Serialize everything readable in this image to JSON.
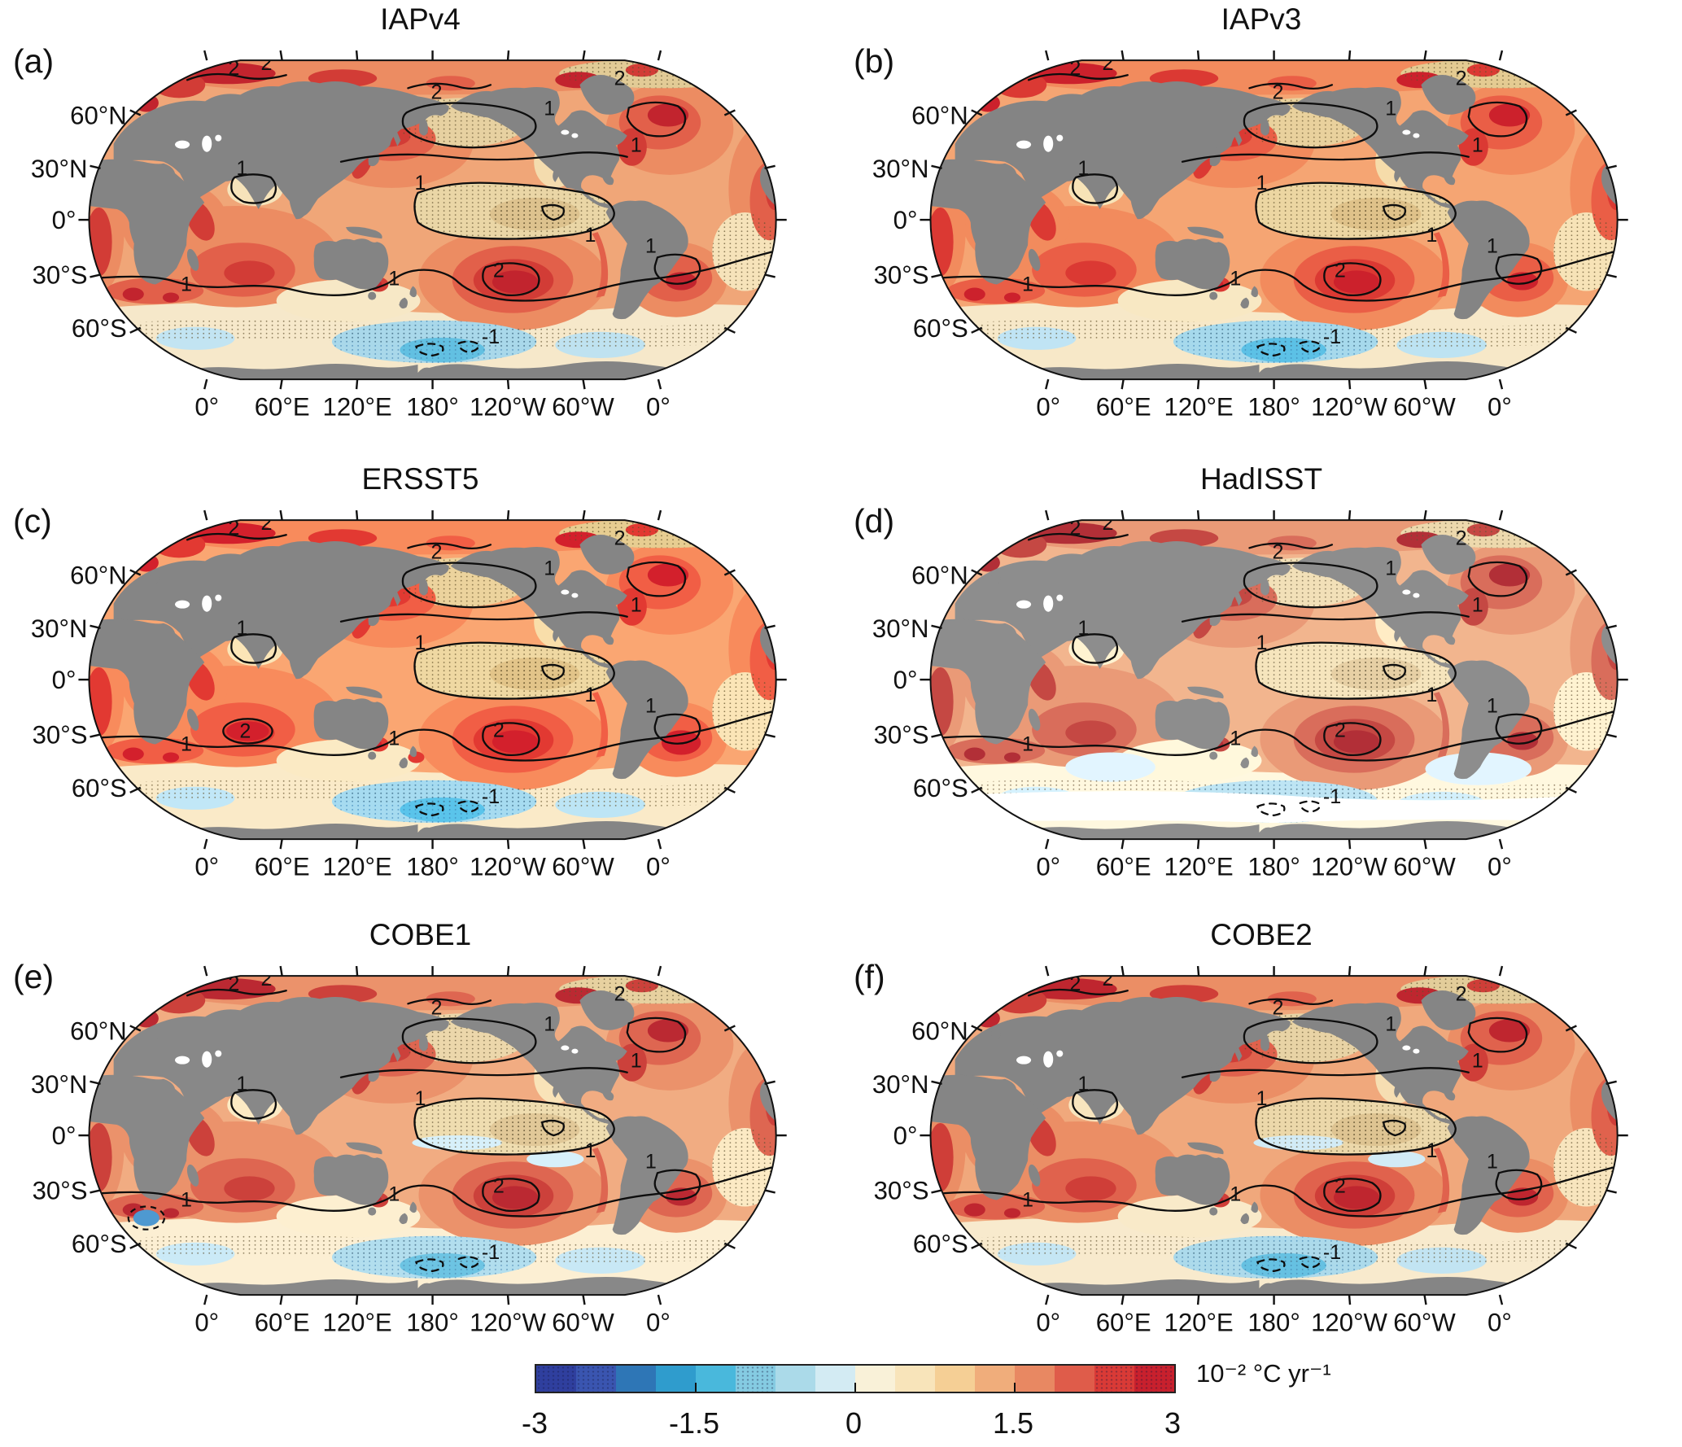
{
  "panels": [
    {
      "letter": "(a)",
      "title": "IAPv4"
    },
    {
      "letter": "(b)",
      "title": "IAPv3"
    },
    {
      "letter": "(c)",
      "title": "ERSST5"
    },
    {
      "letter": "(d)",
      "title": "HadISST"
    },
    {
      "letter": "(e)",
      "title": "COBE1"
    },
    {
      "letter": "(f)",
      "title": "COBE2"
    }
  ],
  "axes": {
    "lat_ticks": [
      "60°N",
      "30°N",
      "0°",
      "30°S",
      "60°S"
    ],
    "lon_ticks": [
      "0°",
      "60°E",
      "120°E",
      "180°",
      "120°W",
      "60°W",
      "0°"
    ]
  },
  "contour_labels": {
    "level1": "1",
    "level2": "2",
    "level_neg1": "-1"
  },
  "colorbar": {
    "unit": "10⁻² °C yr⁻¹",
    "tick_labels": [
      "-3",
      "-1.5",
      "0",
      "1.5",
      "3"
    ],
    "tick_positions_pct": [
      0,
      25,
      50,
      75,
      100
    ],
    "inner_tick_positions_pct": [
      25,
      50,
      75
    ],
    "colors": [
      "#2f3f9e",
      "#3a55b0",
      "#2e76b6",
      "#2f9ccd",
      "#49b8dc",
      "#85cbe2",
      "#abdae9",
      "#d3ebf3",
      "#f9f1d8",
      "#f8e4ba",
      "#f5cf95",
      "#f0ad7b",
      "#e88862",
      "#df5c4a",
      "#d93a36",
      "#c8202d"
    ],
    "dotted_segments": [
      0,
      1,
      5,
      14,
      15
    ]
  },
  "map_colors": {
    "land": "#848484",
    "ocean_base": "#f0a678",
    "warm_mid": "#ec8c62",
    "red": "#d23c36",
    "dark_red": "#c2242e",
    "khaki_stippled": "#ead6a6",
    "cream": "#f6e3ba",
    "light_blue": "#a9d8ea",
    "blue_core": "#62c0e2",
    "contour": "#0d0d0d"
  },
  "chart_data": {
    "type": "heatmap",
    "title": "",
    "subtitle": "Six-panel global map figure of sea-surface temperature trends from six observational datasets",
    "panels": [
      {
        "label": "(a)",
        "dataset": "IAPv4"
      },
      {
        "label": "(b)",
        "dataset": "IAPv3"
      },
      {
        "label": "(c)",
        "dataset": "ERSST5"
      },
      {
        "label": "(d)",
        "dataset": "HadISST"
      },
      {
        "label": "(e)",
        "dataset": "COBE1"
      },
      {
        "label": "(f)",
        "dataset": "COBE2"
      }
    ],
    "projection": "Robinson-style global map, Pacific-centered (180°)",
    "x_tick_labels": [
      "0°",
      "60°E",
      "120°E",
      "180°",
      "120°W",
      "60°W",
      "0°"
    ],
    "y_tick_labels": [
      "60°N",
      "30°N",
      "0°",
      "30°S",
      "60°S"
    ],
    "colorbar": {
      "min": -3,
      "max": 3,
      "ticks": [
        -3,
        -1.5,
        0,
        1.5,
        3
      ],
      "n_segments": 16,
      "unit": "10⁻² °C yr⁻¹",
      "orientation": "horizontal",
      "position": "bottom-center"
    },
    "contour_levels_labeled": [
      -1,
      1,
      2
    ],
    "negative_contours": "dashed",
    "land_color": "#848484",
    "qualitative_pattern": "Warming (orange/red, mostly 0.5-2 ×10⁻² °C/yr) over most oceans; strongest (>2) in Arctic marginal seas, western boundary currents, North Atlantic, South Pacific near 30°S and southwest Atlantic; weak/neutral stippled band along equatorial central Pacific; weak or negative (light blue, dashed -1 contour) trends in Southern Ocean near 60°S; stippled dotting marks low-significance regions"
  }
}
